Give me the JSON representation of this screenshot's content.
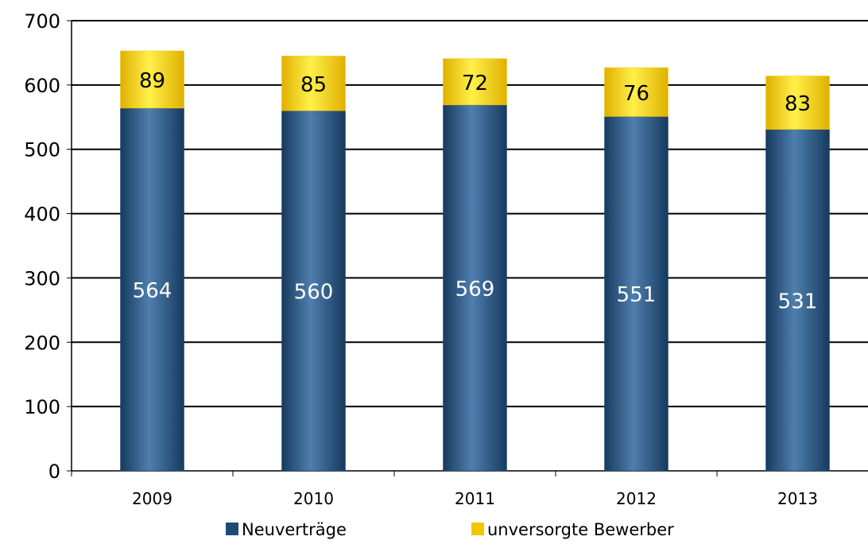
{
  "chart_data": {
    "type": "bar",
    "stacked": true,
    "categories": [
      "2009",
      "2010",
      "2011",
      "2012",
      "2013"
    ],
    "series": [
      {
        "name": "Neuverträge",
        "values": [
          564,
          560,
          569,
          551,
          531
        ],
        "color": "#1f4a74"
      },
      {
        "name": "unversorgte Bewerber",
        "values": [
          89,
          85,
          72,
          76,
          83
        ],
        "color": "#f2c600"
      }
    ],
    "ylim": [
      0,
      700
    ],
    "yticks": [
      "0",
      "100",
      "200",
      "300",
      "400",
      "500",
      "600",
      "700"
    ],
    "grid": true,
    "legend": "bottom",
    "title": "",
    "xlabel": "",
    "ylabel": ""
  }
}
